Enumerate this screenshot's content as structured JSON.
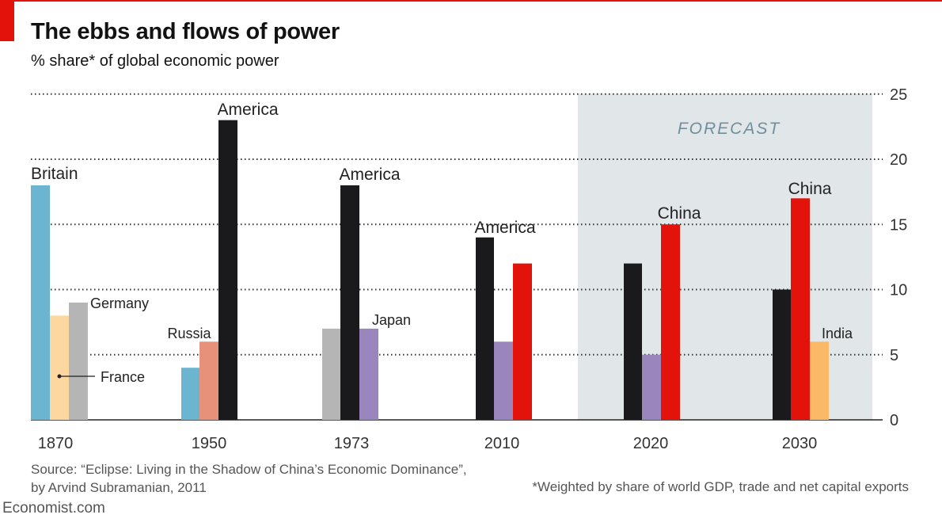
{
  "title": "The ebbs and flows of power",
  "subtitle": "% share* of global economic power",
  "source_line1": "Source: “Eclipse: Living in the Shadow of China’s Economic Dominance”,",
  "source_line2": "by Arvind Subramanian, 2011",
  "footnote": "*Weighted by share of world GDP, trade and net capital exports",
  "brand": "Economist.com",
  "forecast_label": "FORECAST",
  "colors": {
    "america": "#1a1a1d",
    "china": "#e3120b",
    "britain": "#6bb5d1",
    "france": "#fcd7a0",
    "germany": "#b5b5b5",
    "russia": "#e8917a",
    "japan": "#9a86bd",
    "india": "#fbb867",
    "forecast_band": "#e1e6e8",
    "gridline": "#333333"
  },
  "chart_data": {
    "type": "bar",
    "title": "The ebbs and flows of power",
    "subtitle": "% share* of global economic power",
    "ylim": [
      0,
      25
    ],
    "yticks": [
      0,
      5,
      10,
      15,
      20,
      25
    ],
    "y_axis_side": "right",
    "grid": "dotted horizontal",
    "forecast_periods": [
      "2020",
      "2030"
    ],
    "categories": [
      "1870",
      "1950",
      "1973",
      "2010",
      "2020",
      "2030"
    ],
    "groups": [
      {
        "year": "1870",
        "bars": [
          {
            "country": "britain",
            "value": 18,
            "label": "Britain"
          },
          {
            "country": "france",
            "value": 8,
            "label": "France"
          },
          {
            "country": "germany",
            "value": 9,
            "label": "Germany"
          }
        ]
      },
      {
        "year": "1950",
        "bars": [
          {
            "country": "britain",
            "value": 4,
            "label": ""
          },
          {
            "country": "russia",
            "value": 6,
            "label": "Russia"
          },
          {
            "country": "america",
            "value": 23,
            "label": "America"
          }
        ]
      },
      {
        "year": "1973",
        "bars": [
          {
            "country": "germany",
            "value": 7,
            "label": ""
          },
          {
            "country": "america",
            "value": 18,
            "label": "America"
          },
          {
            "country": "japan",
            "value": 7,
            "label": "Japan"
          }
        ]
      },
      {
        "year": "2010",
        "bars": [
          {
            "country": "america",
            "value": 14,
            "label": "America"
          },
          {
            "country": "japan",
            "value": 6,
            "label": ""
          },
          {
            "country": "china",
            "value": 12,
            "label": ""
          }
        ]
      },
      {
        "year": "2020",
        "bars": [
          {
            "country": "america",
            "value": 12,
            "label": ""
          },
          {
            "country": "japan",
            "value": 5,
            "label": ""
          },
          {
            "country": "china",
            "value": 15,
            "label": "China"
          }
        ]
      },
      {
        "year": "2030",
        "bars": [
          {
            "country": "america",
            "value": 10,
            "label": ""
          },
          {
            "country": "china",
            "value": 17,
            "label": "China"
          },
          {
            "country": "india",
            "value": 6,
            "label": "India"
          }
        ]
      }
    ]
  }
}
